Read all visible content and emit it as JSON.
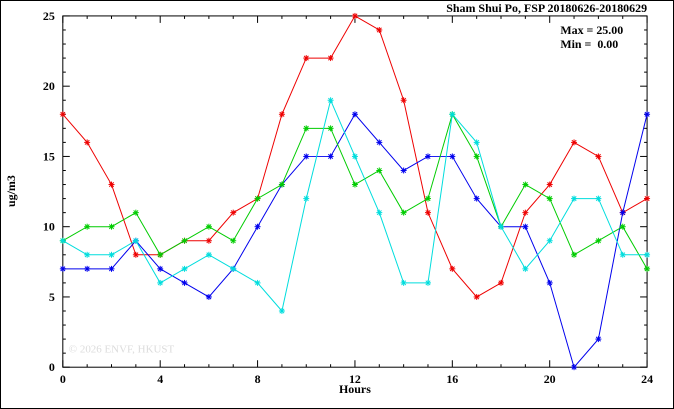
{
  "title": "Sham Shui Po, FSP 20180626-20180629",
  "stats": {
    "max_label": "Max = 25.00",
    "min_label": "Min =  0.00"
  },
  "watermark": "© 2026 ENVF, HKUST",
  "chart_data": {
    "type": "line",
    "title": "Sham Shui Po, FSP 20180626-20180629",
    "xlabel": "Hours",
    "ylabel": "ug/m3",
    "xlim": [
      0,
      24
    ],
    "ylim": [
      0,
      25
    ],
    "xticks": [
      0,
      4,
      8,
      12,
      16,
      20,
      24
    ],
    "yticks": [
      0,
      5,
      10,
      15,
      20,
      25
    ],
    "grid": false,
    "legend": "none",
    "annotations": [
      "Max = 25.00",
      "Min =  0.00"
    ],
    "x": [
      0,
      1,
      2,
      3,
      4,
      5,
      6,
      7,
      8,
      9,
      10,
      11,
      12,
      13,
      14,
      15,
      16,
      17,
      18,
      19,
      20,
      21,
      22,
      23,
      24
    ],
    "series": [
      {
        "name": "red",
        "color": "#ee0000",
        "values": [
          18,
          16,
          13,
          8,
          8,
          9,
          9,
          11,
          12,
          18,
          22,
          22,
          25,
          24,
          19,
          11,
          7,
          5,
          6,
          11,
          13,
          16,
          15,
          11,
          12
        ]
      },
      {
        "name": "blue",
        "color": "#0000ee",
        "values": [
          7,
          7,
          7,
          9,
          7,
          6,
          5,
          7,
          10,
          13,
          15,
          15,
          18,
          16,
          14,
          15,
          15,
          12,
          10,
          10,
          6,
          0,
          2,
          11,
          18
        ]
      },
      {
        "name": "green",
        "color": "#00cc00",
        "values": [
          9,
          10,
          10,
          11,
          8,
          9,
          10,
          9,
          12,
          13,
          17,
          17,
          13,
          14,
          11,
          12,
          18,
          15,
          10,
          13,
          12,
          8,
          9,
          10,
          7
        ]
      },
      {
        "name": "cyan",
        "color": "#00dddd",
        "values": [
          9,
          8,
          8,
          9,
          6,
          7,
          8,
          7,
          6,
          4,
          12,
          19,
          15,
          11,
          6,
          6,
          18,
          16,
          10,
          7,
          9,
          12,
          12,
          8,
          8
        ]
      }
    ]
  }
}
